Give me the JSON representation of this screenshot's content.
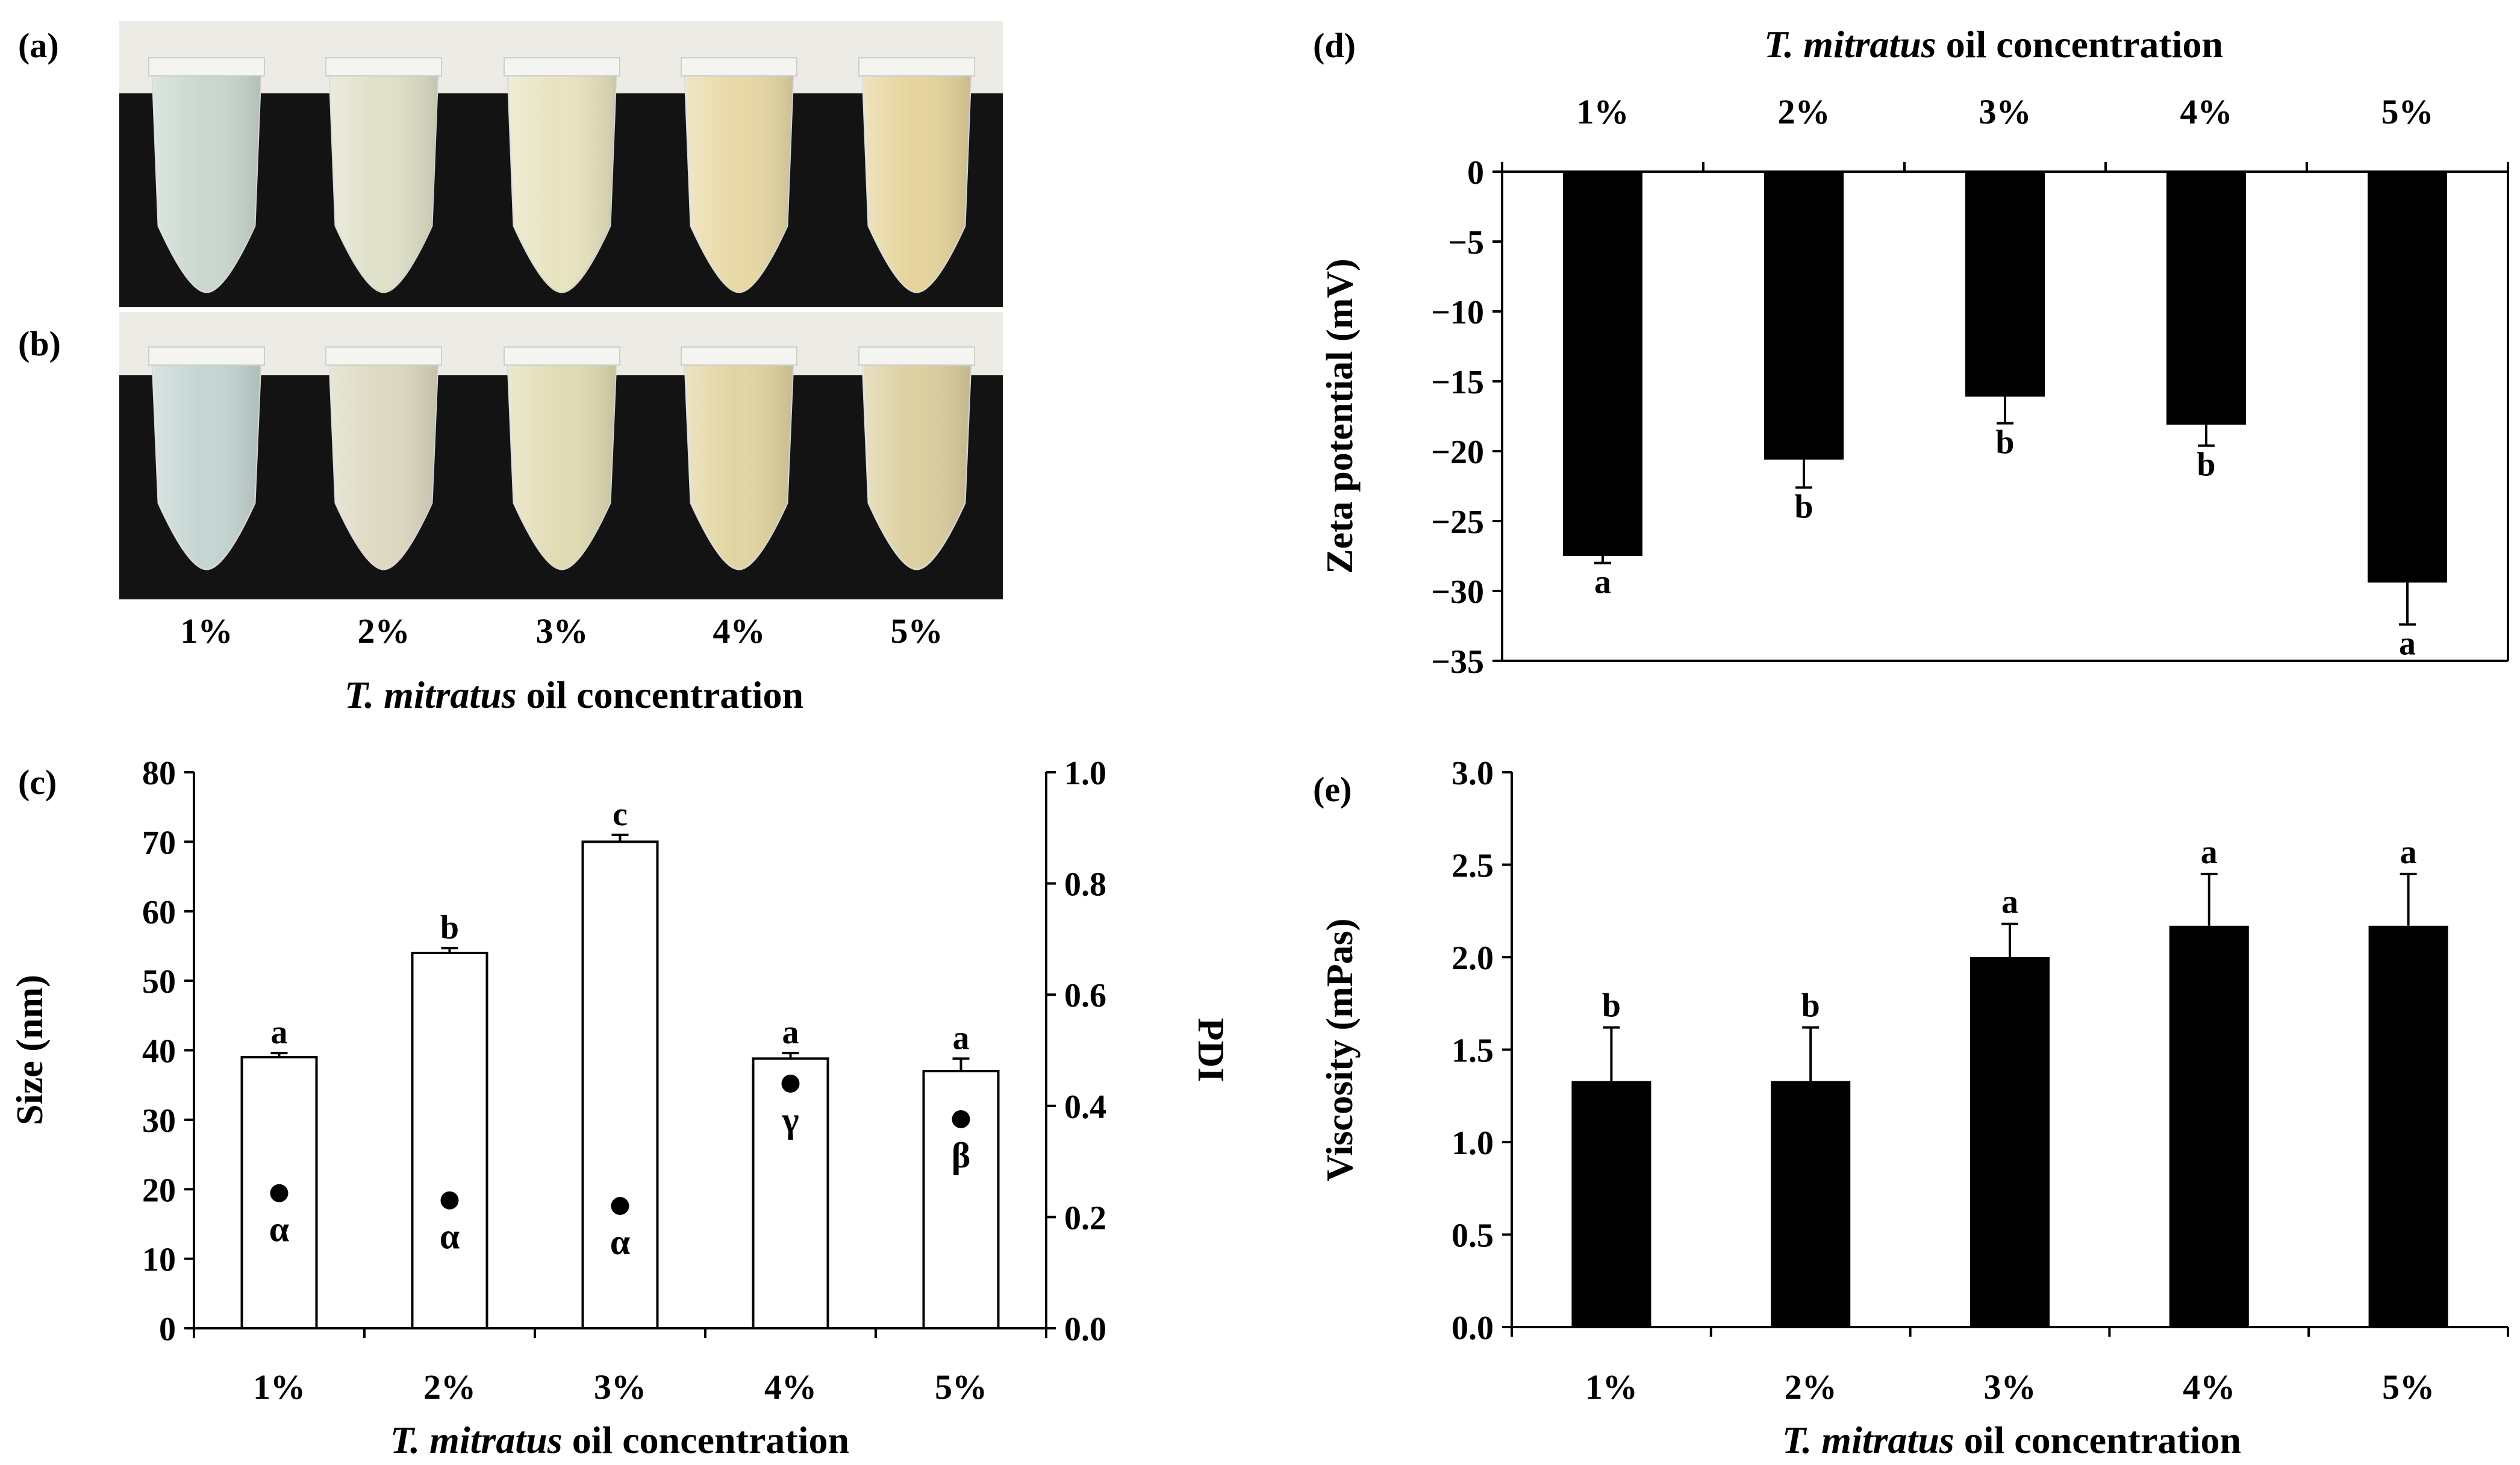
{
  "panels": {
    "a": {
      "label": "(a)"
    },
    "b": {
      "label": "(b)"
    },
    "photo": {
      "categories": [
        "1%",
        "2%",
        "3%",
        "4%",
        "5%"
      ],
      "xlabel_italic": "T. mitratus",
      "xlabel_rest": " oil concentration",
      "tube_colors_a": [
        "#c9d8cf",
        "#dfe0c8",
        "#e8e3bf",
        "#e8d9a6",
        "#e6d49c"
      ],
      "tube_colors_b": [
        "#c4d5d2",
        "#ddd9c2",
        "#e1dcb4",
        "#e2d4a2",
        "#dccfa0"
      ]
    }
  },
  "chart_data": [
    {
      "id": "c",
      "panel_label": "(c)",
      "type": "bar",
      "categories": [
        "1%",
        "2%",
        "3%",
        "4%",
        "5%"
      ],
      "series": [
        {
          "name": "Size",
          "values": [
            39,
            54,
            70,
            38.8,
            37
          ],
          "errors": [
            0.6,
            0.7,
            1.0,
            0.8,
            1.8
          ],
          "letters": [
            "a",
            "b",
            "c",
            "a",
            "a"
          ],
          "color": "#ffffff"
        },
        {
          "name": "PDI",
          "values": [
            0.243,
            0.23,
            0.22,
            0.44,
            0.376
          ],
          "errors": [
            0,
            0,
            0,
            0.01,
            0.01
          ],
          "letters": [
            "α",
            "α",
            "α",
            "γ",
            "β"
          ],
          "color": "#000000"
        }
      ],
      "xlabel_italic": "T. mitratus",
      "xlabel_rest": " oil concentration",
      "ylabel": "Size (nm)",
      "ylabel2": "PDI",
      "ylim": [
        0,
        80
      ],
      "yticks": [
        "0",
        "10",
        "20",
        "30",
        "40",
        "50",
        "60",
        "70",
        "80"
      ],
      "ylim2": [
        0,
        1.0
      ],
      "yticks2": [
        "0.0",
        "0.2",
        "0.4",
        "0.6",
        "0.8",
        "1.0"
      ]
    },
    {
      "id": "d",
      "panel_label": "(d)",
      "type": "bar",
      "categories": [
        "1%",
        "2%",
        "3%",
        "4%",
        "5%"
      ],
      "values": [
        -27.5,
        -20.6,
        -16.1,
        -18.1,
        -29.4
      ],
      "errors": [
        0.5,
        2.0,
        1.9,
        1.5,
        3.0
      ],
      "letters": [
        "a",
        "b",
        "b",
        "b",
        "a"
      ],
      "xlabel_italic": "T. mitratus",
      "xlabel_rest": " oil concentration",
      "xaxis_position": "top",
      "ylabel": "Zeta potential (mV)",
      "ylim": [
        -35,
        0
      ],
      "yticks": [
        "0",
        "−5",
        "−10",
        "−15",
        "−20",
        "−25",
        "−30",
        "−35"
      ]
    },
    {
      "id": "e",
      "panel_label": "(e)",
      "type": "bar",
      "categories": [
        "1%",
        "2%",
        "3%",
        "4%",
        "5%"
      ],
      "values": [
        1.33,
        1.33,
        2.0,
        2.17,
        2.17
      ],
      "errors": [
        0.29,
        0.29,
        0.18,
        0.28,
        0.28
      ],
      "letters": [
        "b",
        "b",
        "a",
        "a",
        "a"
      ],
      "xlabel_italic": "T. mitratus",
      "xlabel_rest": " oil concentration",
      "ylabel": "Viscosity (mPas)",
      "ylim": [
        0,
        3.0
      ],
      "yticks": [
        "0.0",
        "0.5",
        "1.0",
        "1.5",
        "2.0",
        "2.5",
        "3.0"
      ]
    }
  ]
}
